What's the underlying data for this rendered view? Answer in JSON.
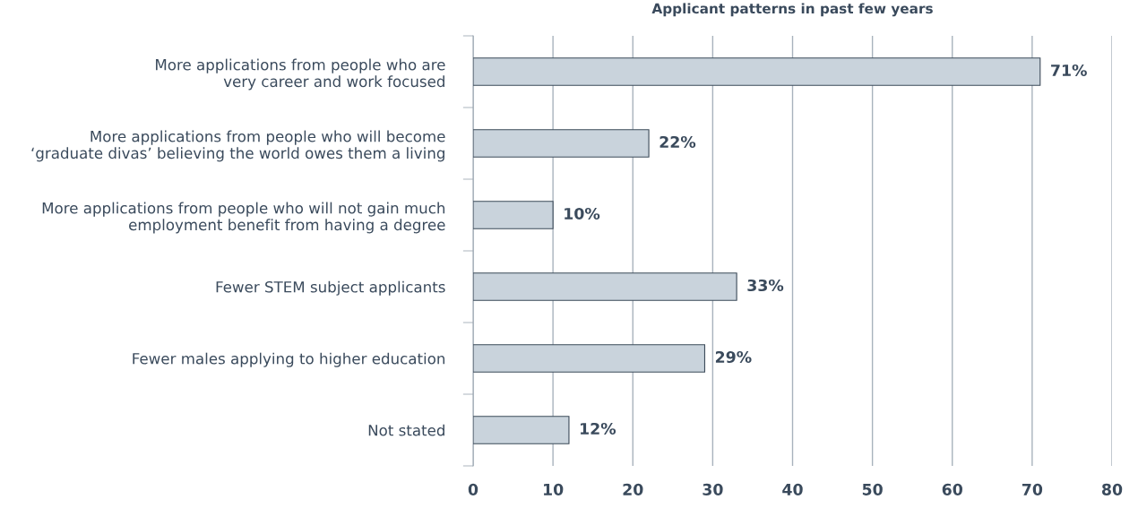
{
  "chart_data": {
    "type": "bar",
    "orientation": "horizontal",
    "title": "Applicant patterns in past few years",
    "categories": [
      "More applications from people who are\nvery career and work focused",
      "More applications from people who will become\n‘graduate divas’ believing the world owes them a living",
      "More applications from people who will not gain much\nemployment benefit from having a degree",
      "Fewer STEM subject applicants",
      "Fewer males applying to higher education",
      "Not stated"
    ],
    "values": [
      71,
      22,
      10,
      33,
      29,
      12
    ],
    "value_labels": [
      "71%",
      "22%",
      "10%",
      "33%",
      "29%",
      "12%"
    ],
    "color": "#c9d3dc",
    "xlim": [
      0,
      80
    ],
    "xticks": [
      0,
      10,
      20,
      30,
      40,
      50,
      60,
      70,
      80
    ],
    "grid": "x",
    "legend": false
  }
}
